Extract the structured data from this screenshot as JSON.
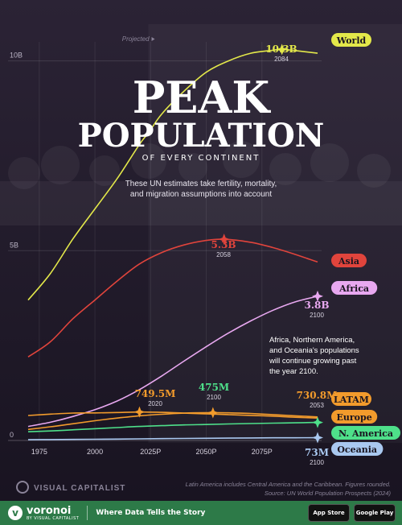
{
  "title": {
    "line1": "PEAK",
    "line2": "POPULATION",
    "line3": "OF EVERY CONTINENT",
    "subtitle_line1": "These UN estimates take fertility, mortality,",
    "subtitle_line2": "and migration assumptions into account"
  },
  "projected_label": "Projected",
  "note": [
    "Africa, Northern America,",
    "and Oceania's populations",
    "will continue growing past",
    "the year 2100."
  ],
  "footnote": "Latin America includes Central America and the Caribbean. Figures rounded.",
  "source": "Source: UN World Population Prospects (2024)",
  "vc_brand": "VISUAL CAPITALIST",
  "footer": {
    "brand": "voronoi",
    "brand_sub": "BY VISUAL CAPITALIST",
    "tagline": "Where Data Tells the Story",
    "app_store": "App Store",
    "google_play": "Google Play"
  },
  "chart_data": {
    "type": "line",
    "x_ticks": [
      "1975",
      "2000",
      "2025P",
      "2050P",
      "2075P"
    ],
    "x_tick_values": [
      1975,
      2000,
      2025,
      2050,
      2075
    ],
    "y_ticks": [
      "0",
      "5B",
      "10B"
    ],
    "y_tick_values": [
      0,
      5,
      10
    ],
    "xlim": [
      1970,
      2100
    ],
    "ylim": [
      0,
      10.5
    ],
    "projection_start": 2024,
    "series": [
      {
        "name": "World",
        "color": "#e3e84a",
        "x": [
          1970,
          1980,
          1990,
          2000,
          2010,
          2020,
          2024,
          2030,
          2040,
          2050,
          2060,
          2070,
          2080,
          2084,
          2090,
          2100
        ],
        "y": [
          3.7,
          4.4,
          5.3,
          6.1,
          6.9,
          7.8,
          8.1,
          8.6,
          9.2,
          9.7,
          10.0,
          10.2,
          10.28,
          10.3,
          10.27,
          10.2
        ],
        "peak_value": "10.3B",
        "peak_year": "2084"
      },
      {
        "name": "Asia",
        "color": "#e0443c",
        "x": [
          1970,
          1980,
          1990,
          2000,
          2010,
          2020,
          2030,
          2040,
          2050,
          2058,
          2070,
          2080,
          2090,
          2100
        ],
        "y": [
          2.2,
          2.6,
          3.2,
          3.7,
          4.2,
          4.65,
          4.95,
          5.15,
          5.27,
          5.3,
          5.22,
          5.08,
          4.9,
          4.7
        ],
        "peak_value": "5.3B",
        "peak_year": "2058"
      },
      {
        "name": "Africa",
        "color": "#e8a8f0",
        "x": [
          1970,
          1980,
          1990,
          2000,
          2010,
          2020,
          2030,
          2040,
          2050,
          2060,
          2070,
          2080,
          2090,
          2100
        ],
        "y": [
          0.37,
          0.48,
          0.63,
          0.81,
          1.04,
          1.34,
          1.7,
          2.09,
          2.47,
          2.83,
          3.15,
          3.43,
          3.65,
          3.8
        ],
        "peak_value": "3.8B",
        "peak_year": "2100"
      },
      {
        "name": "LATAM",
        "color": "#f29b2c",
        "x": [
          1970,
          1980,
          1990,
          2000,
          2010,
          2020,
          2030,
          2040,
          2050,
          2053,
          2060,
          2070,
          2080,
          2090,
          2100
        ],
        "y": [
          0.29,
          0.36,
          0.44,
          0.52,
          0.59,
          0.65,
          0.69,
          0.72,
          0.7305,
          0.7308,
          0.728,
          0.71,
          0.68,
          0.65,
          0.62
        ],
        "peak_value": "730.8M",
        "peak_year": "2053"
      },
      {
        "name": "Europe",
        "color": "#f29b2c",
        "x": [
          1970,
          1980,
          1990,
          2000,
          2010,
          2020,
          2030,
          2040,
          2050,
          2060,
          2070,
          2080,
          2090,
          2100
        ],
        "y": [
          0.657,
          0.694,
          0.721,
          0.726,
          0.736,
          0.7495,
          0.74,
          0.72,
          0.7,
          0.68,
          0.66,
          0.64,
          0.61,
          0.59
        ],
        "peak_value": "749.5M",
        "peak_year": "2020"
      },
      {
        "name": "N. America",
        "color": "#4ee08a",
        "x": [
          1970,
          1980,
          1990,
          2000,
          2010,
          2020,
          2030,
          2040,
          2050,
          2060,
          2070,
          2080,
          2090,
          2100
        ],
        "y": [
          0.23,
          0.25,
          0.28,
          0.31,
          0.34,
          0.37,
          0.39,
          0.41,
          0.42,
          0.435,
          0.445,
          0.455,
          0.465,
          0.475
        ],
        "peak_value": "475M",
        "peak_year": "2100"
      },
      {
        "name": "Oceania",
        "color": "#a9c8f0",
        "x": [
          1970,
          1980,
          1990,
          2000,
          2010,
          2020,
          2030,
          2040,
          2050,
          2060,
          2070,
          2080,
          2090,
          2100
        ],
        "y": [
          0.02,
          0.023,
          0.027,
          0.031,
          0.037,
          0.043,
          0.048,
          0.053,
          0.058,
          0.062,
          0.066,
          0.069,
          0.071,
          0.073
        ],
        "peak_value": "73M",
        "peak_year": "2100"
      }
    ]
  }
}
